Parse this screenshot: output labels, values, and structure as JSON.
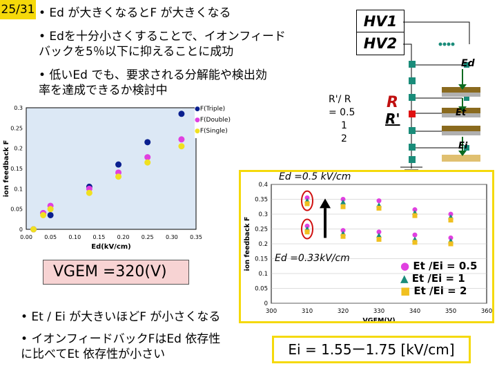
{
  "slide_number": "25/31",
  "bullets_top": [
    {
      "text": "• Ed が大きくなるとF が大きくなる"
    },
    {
      "text": "• Edを十分小さくすることで、イオンフィード",
      "text2": "バックを5％以下に抑えることに成功"
    },
    {
      "text": "• 低いEd でも、要求される分解能や検出効",
      "text2": "率を達成できるか検討中"
    }
  ],
  "bullets_bottom": [
    {
      "text": "• Et / Ei が大きいほどF が小さくなる"
    },
    {
      "text": "• イオンフィードバックFはEd 依存性",
      "text2": "に比べてEt 依存性が小さい"
    }
  ],
  "diagram": {
    "hv1": "HV1",
    "hv2": "HV2",
    "ratio_label_1": "R'/ R",
    "ratio_label_2": "= 0.5",
    "ratio_label_3": "1",
    "ratio_label_4": "2",
    "r_label": "R",
    "r_prime_label": "R'",
    "ed_label": "Ed",
    "et_label": "Et",
    "ei_label": "Ei"
  },
  "vgem_label": "VGEM =320(V)",
  "ei_range": "Ei = 1.55ー1.75 [kV/cm]",
  "annot_ed05": "Ed =0.5 kV/cm",
  "annot_ed033": "Ed =0.33kV/cm",
  "legend2": [
    {
      "label": "Et /Ei = 0.5",
      "color": "#e040e0",
      "marker": "circle"
    },
    {
      "label": "Et /Ei = 1",
      "color": "#1a8c7a",
      "marker": "triangle"
    },
    {
      "label": "Et /Ei = 2",
      "color": "#f0c020",
      "marker": "square"
    }
  ],
  "chart_data": [
    {
      "type": "scatter",
      "xlabel": "Ed(kV/cm)",
      "ylabel": "ion feedback F",
      "xlim": [
        0,
        0.35
      ],
      "ylim": [
        0,
        0.3
      ],
      "xticks": [
        "0.00",
        "0.05",
        "0.10",
        "0.15",
        "0.20",
        "0.25",
        "0.30",
        "0.35"
      ],
      "yticks": [
        "0",
        "0.05",
        "0.1",
        "0.15",
        "0.2",
        "0.25",
        "0.3"
      ],
      "legend_position": "top-right",
      "series": [
        {
          "name": "F(Triple)",
          "color": "#0a1f8f",
          "marker": "circle",
          "x": [
            0.015,
            0.035,
            0.05,
            0.13,
            0.19,
            0.25,
            0.32
          ],
          "y": [
            0.0,
            0.04,
            0.035,
            0.105,
            0.16,
            0.215,
            0.285
          ]
        },
        {
          "name": "F(Double)",
          "color": "#e040e0",
          "marker": "circle",
          "x": [
            0.015,
            0.035,
            0.05,
            0.13,
            0.19,
            0.25,
            0.32
          ],
          "y": [
            0.0,
            0.04,
            0.058,
            0.1,
            0.14,
            0.178,
            0.222
          ]
        },
        {
          "name": "F(Single)",
          "color": "#f0e020",
          "marker": "circle",
          "x": [
            0.015,
            0.035,
            0.05,
            0.13,
            0.19,
            0.25,
            0.32
          ],
          "y": [
            0.0,
            0.035,
            0.05,
            0.09,
            0.13,
            0.165,
            0.205
          ]
        }
      ]
    },
    {
      "type": "scatter",
      "xlabel": "VGEM(V)",
      "ylabel": "ion feedback F",
      "xlim": [
        300,
        360
      ],
      "ylim": [
        0,
        0.4
      ],
      "xticks": [
        "300",
        "310",
        "320",
        "330",
        "340",
        "350",
        "360"
      ],
      "yticks": [
        "0",
        "0.05",
        "0.1",
        "0.15",
        "0.2",
        "0.25",
        "0.3",
        "0.35",
        "0.4"
      ],
      "series": [
        {
          "name": "Et /Ei = 0.5",
          "color": "#e040e0",
          "marker": "circle",
          "x": [
            310,
            320,
            330,
            340,
            350,
            310,
            320,
            330,
            340,
            350
          ],
          "y": [
            0.355,
            0.35,
            0.345,
            0.315,
            0.3,
            0.26,
            0.245,
            0.24,
            0.23,
            0.22
          ]
        },
        {
          "name": "Et /Ei = 1",
          "color": "#1a8c7a",
          "marker": "triangle",
          "x": [
            310,
            320,
            330,
            340,
            350,
            310,
            320,
            330,
            340,
            350
          ],
          "y": [
            0.345,
            0.34,
            0.33,
            0.305,
            0.29,
            0.25,
            0.235,
            0.228,
            0.215,
            0.21
          ]
        },
        {
          "name": "Et /Ei = 2",
          "color": "#f0c020",
          "marker": "square",
          "x": [
            310,
            320,
            330,
            340,
            350,
            310,
            320,
            330,
            340,
            350
          ],
          "y": [
            0.335,
            0.325,
            0.32,
            0.295,
            0.28,
            0.24,
            0.225,
            0.215,
            0.205,
            0.2
          ]
        }
      ]
    }
  ]
}
